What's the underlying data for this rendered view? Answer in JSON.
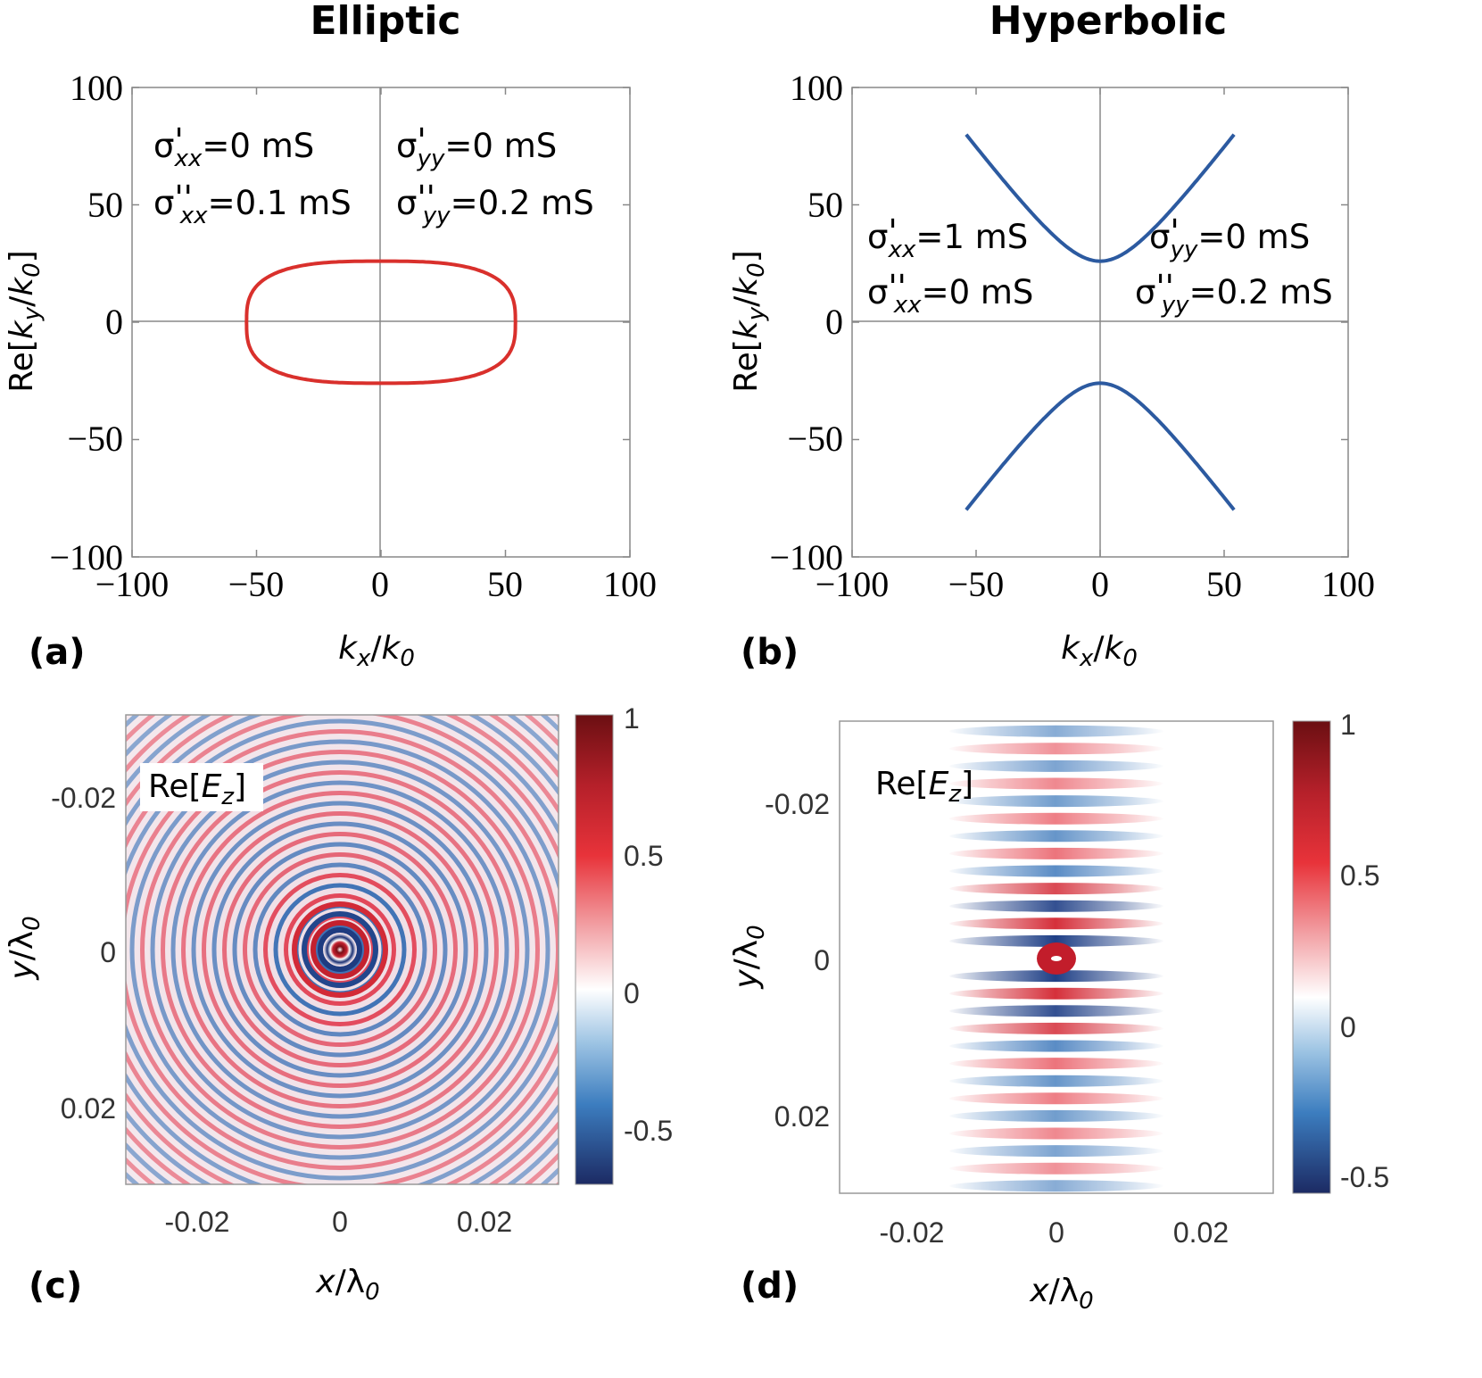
{
  "panels": {
    "a": "(a)",
    "b": "(b)",
    "c": "(c)",
    "d": "(d)"
  },
  "chart_data": [
    {
      "id": "a",
      "type": "line",
      "title": "Elliptic",
      "xlabel": "k_x/k_0",
      "ylabel": "Re[k_y/k_0]",
      "xlim": [
        -100,
        100
      ],
      "ylim": [
        -100,
        100
      ],
      "xticks": [
        -100,
        -50,
        0,
        50,
        100
      ],
      "yticks": [
        -100,
        -50,
        0,
        50,
        100
      ],
      "xtick_labels": [
        "−100",
        "−50",
        "0",
        "50",
        "100"
      ],
      "ytick_labels": [
        "−100",
        "−50",
        "0",
        "50",
        "100"
      ],
      "series": [
        {
          "name": "isofrequency contour",
          "color": "#d9302c",
          "shape": "superellipse",
          "a": 54,
          "b": 26,
          "exponent": 3
        }
      ],
      "annotations": [
        {
          "sym": "σ",
          "prime": "'",
          "sub": "xx",
          "value": "=0 mS"
        },
        {
          "sym": "σ",
          "prime": "''",
          "sub": "xx",
          "value": "=0.1 mS"
        },
        {
          "sym": "σ",
          "prime": "'",
          "sub": "yy",
          "value": "=0 mS"
        },
        {
          "sym": "σ",
          "prime": "''",
          "sub": "yy",
          "value": "=0.2 mS"
        }
      ]
    },
    {
      "id": "b",
      "type": "line",
      "title": "Hyperbolic",
      "xlabel": "k_x/k_0",
      "ylabel": "Re[k_y/k_0]",
      "xlim": [
        -100,
        100
      ],
      "ylim": [
        -100,
        100
      ],
      "xticks": [
        -100,
        -50,
        0,
        50,
        100
      ],
      "yticks": [
        -100,
        -50,
        0,
        50,
        100
      ],
      "xtick_labels": [
        "−100",
        "−50",
        "0",
        "50",
        "100"
      ],
      "ytick_labels": [
        "−100",
        "−50",
        "0",
        "50",
        "100"
      ],
      "series": [
        {
          "name": "upper branch",
          "color": "#2c5aa0",
          "vertex": 26,
          "slope": 1.4,
          "xrange": [
            -54,
            54
          ]
        },
        {
          "name": "lower branch",
          "color": "#2c5aa0",
          "vertex": -26,
          "slope": 1.4,
          "xrange": [
            -54,
            54
          ]
        }
      ],
      "annotations": [
        {
          "sym": "σ",
          "prime": "'",
          "sub": "xx",
          "value": "=1 mS"
        },
        {
          "sym": "σ",
          "prime": "''",
          "sub": "xx",
          "value": "=0 mS"
        },
        {
          "sym": "σ",
          "prime": "'",
          "sub": "yy",
          "value": "=0 mS"
        },
        {
          "sym": "σ",
          "prime": "''",
          "sub": "yy",
          "value": "=0.2 mS"
        }
      ]
    },
    {
      "id": "c",
      "type": "heatmap",
      "label_main": "Re[",
      "label_var": "E",
      "label_sub": "z",
      "label_end": "]",
      "xlabel_var": "x",
      "ylabel_var": "y",
      "axis_unit": "/λ",
      "axis_unit_sub": "0",
      "xlim": [
        -0.03,
        0.03
      ],
      "ylim": [
        -0.03,
        0.03
      ],
      "xticks": [
        -0.02,
        0,
        0.02
      ],
      "yticks": [
        -0.02,
        0,
        0.02
      ],
      "xtick_labels": [
        "-0.02",
        "0",
        "0.02"
      ],
      "ytick_labels": [
        "-0.02",
        "0",
        "0.02"
      ],
      "pattern": "concentric rings",
      "colorbar": {
        "range": [
          -0.7,
          1
        ],
        "ticks": [
          1,
          0.5,
          0,
          -0.5
        ],
        "labels": [
          "1",
          "0.5",
          "0",
          "-0.5"
        ]
      }
    },
    {
      "id": "d",
      "type": "heatmap",
      "label_main": "Re[",
      "label_var": "E",
      "label_sub": "z",
      "label_end": "]",
      "xlabel_var": "x",
      "ylabel_var": "y",
      "axis_unit": "/λ",
      "axis_unit_sub": "0",
      "xlim": [
        -0.03,
        0.03
      ],
      "ylim": [
        -0.03,
        0.03
      ],
      "xticks": [
        -0.02,
        0,
        0.02
      ],
      "yticks": [
        -0.02,
        0,
        0.02
      ],
      "xtick_labels": [
        "-0.02",
        "0",
        "0.02"
      ],
      "ytick_labels": [
        "-0.02",
        "0",
        "0.02"
      ],
      "pattern": "horizontal stripes",
      "colorbar": {
        "range": [
          -0.6,
          1
        ],
        "ticks": [
          1,
          0.5,
          0,
          -0.5
        ],
        "labels": [
          "1",
          "0.5",
          "0",
          "-0.5"
        ]
      }
    }
  ]
}
